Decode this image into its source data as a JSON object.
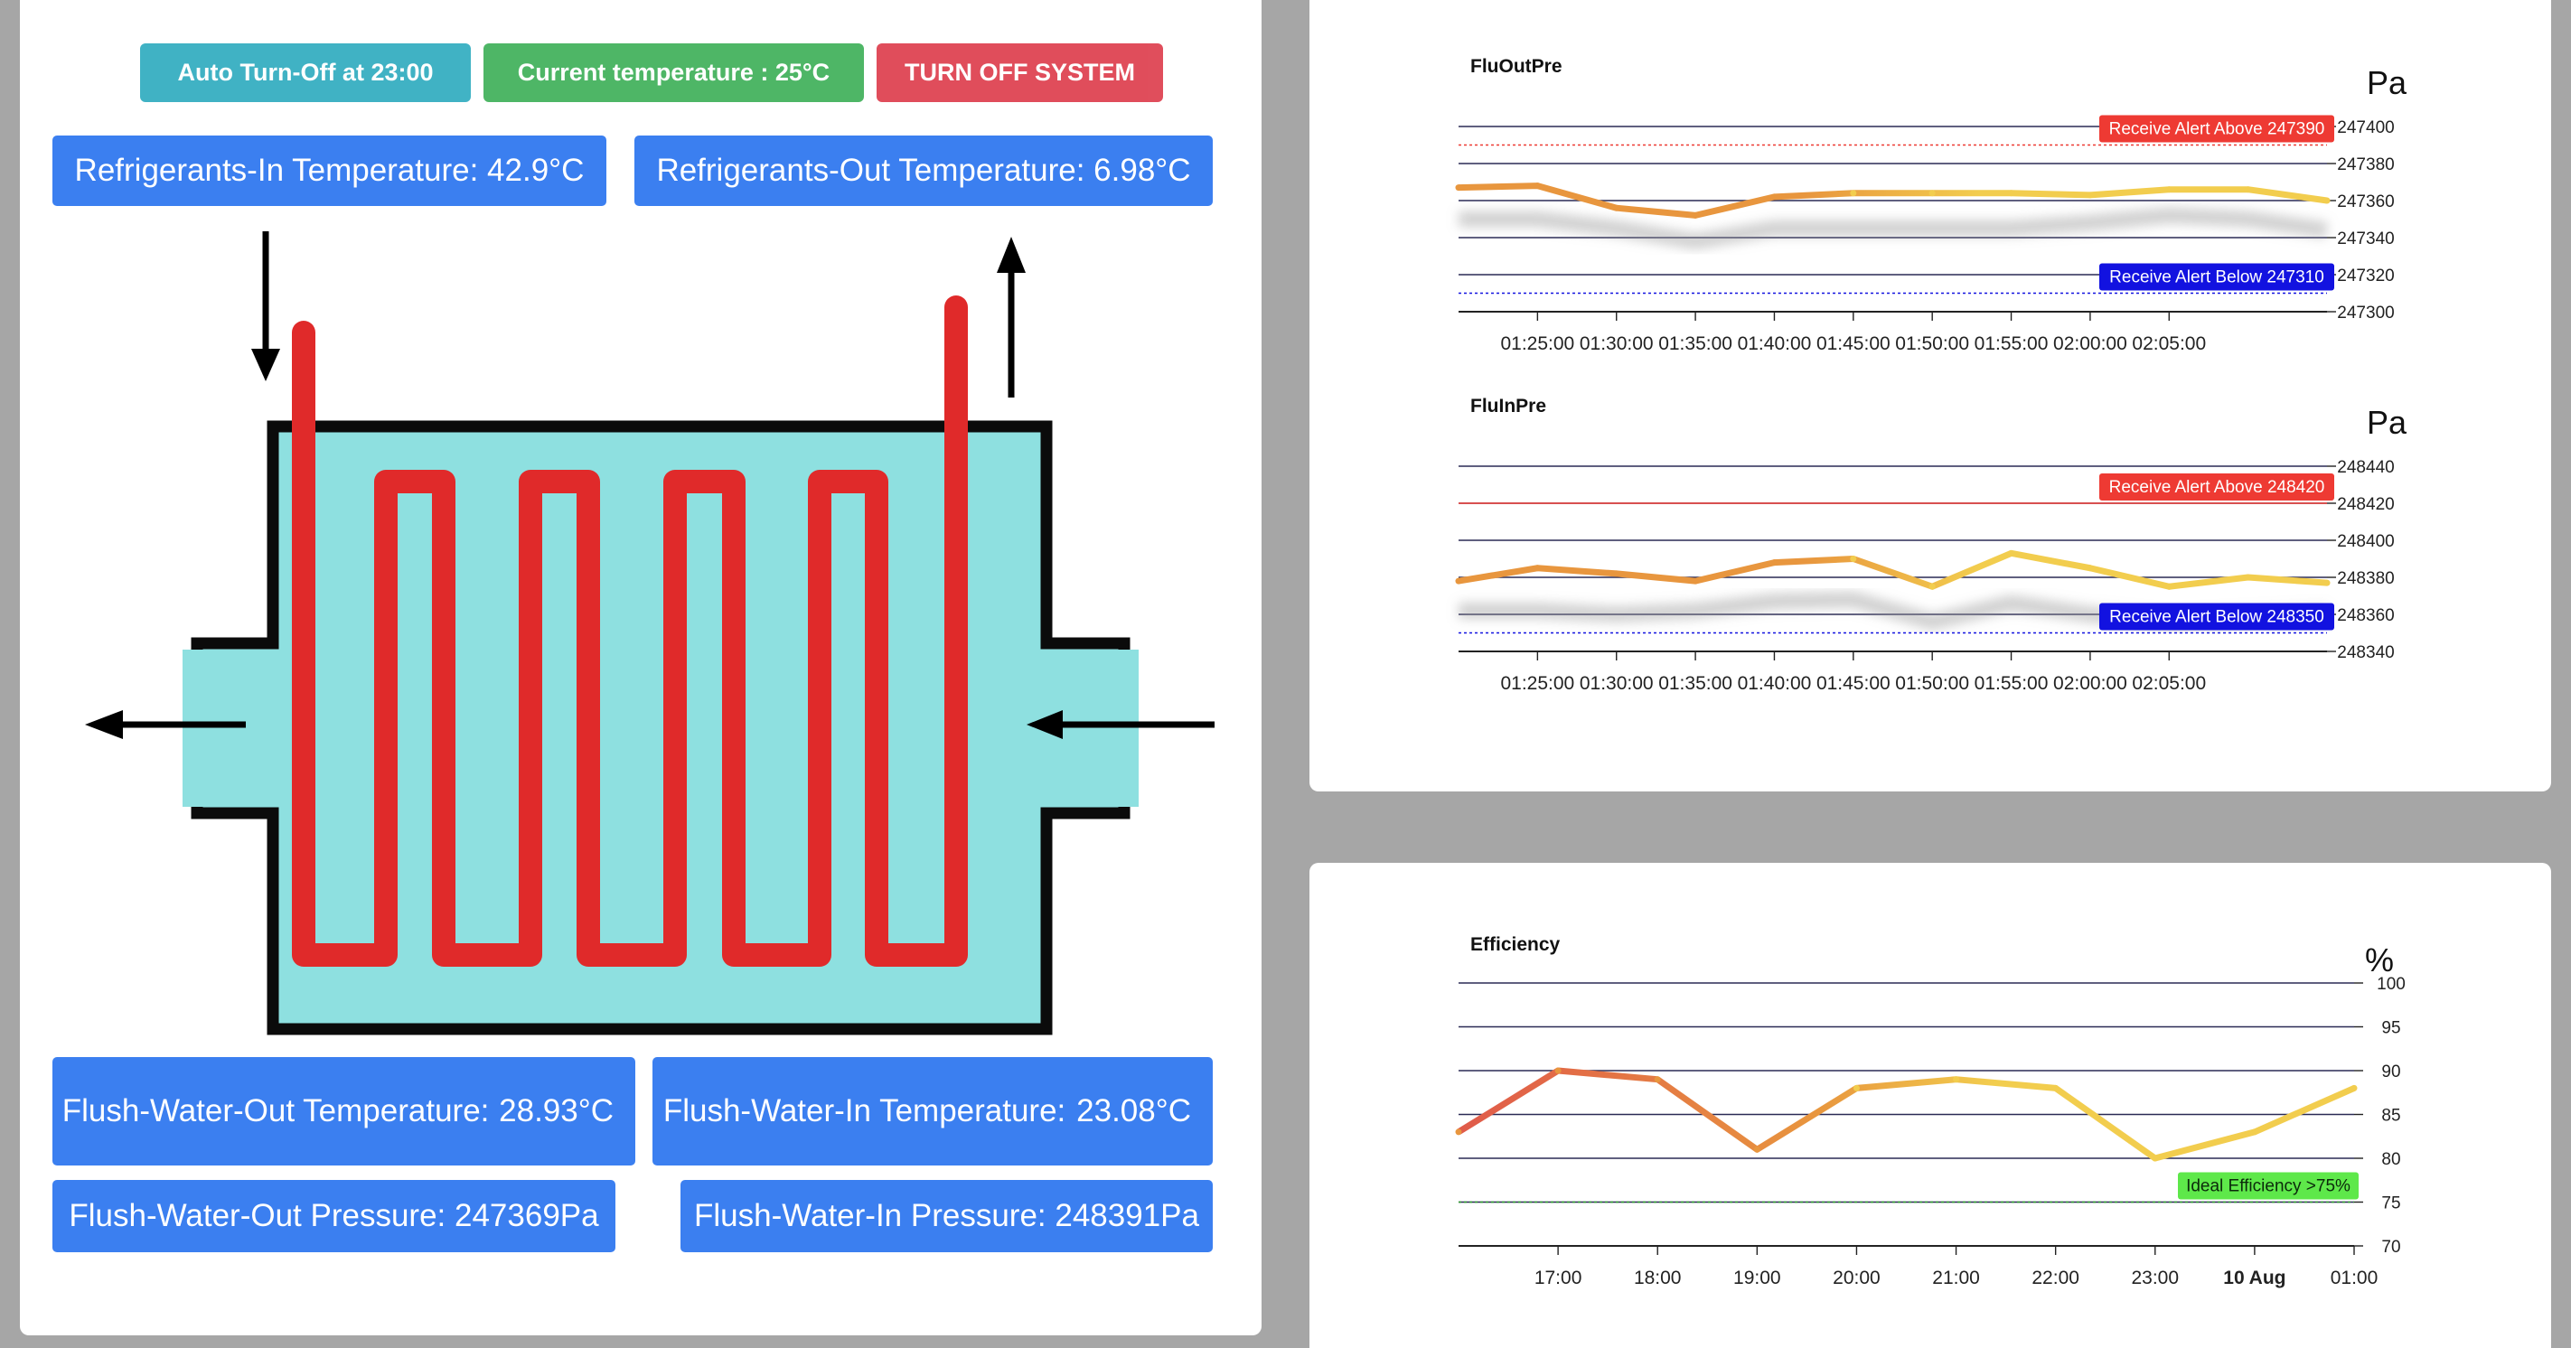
{
  "header_buttons": {
    "auto_off": "Auto Turn-Off at 23:00",
    "current_temp": "Current temperature : 25°C",
    "turn_off": "TURN OFF SYSTEM"
  },
  "readouts": {
    "ref_in": "Refrigerants-In Temperature: 42.9°C",
    "ref_out": "Refrigerants-Out Temperature: 6.98°C",
    "fw_out_temp_label": "Flush-Water-Out Temperature:",
    "fw_out_temp_value": "28.93°C",
    "fw_in_temp_label": "Flush-Water-In Temperature:",
    "fw_in_temp_value": "23.08°C",
    "fw_out_pressure": "Flush-Water-Out Pressure: 247369Pa",
    "fw_in_pressure": "Flush-Water-In Pressure: 248391Pa"
  },
  "colors": {
    "tank_fill": "#8ee0e0",
    "coil": "#e02a2a",
    "alert_above": "#ee3a33",
    "alert_below": "#1212e0",
    "ideal": "#5ee84a",
    "line_orange": "#e8963e",
    "line_yellow": "#f2cd4e"
  },
  "chart_data": [
    {
      "type": "line",
      "title": "FluOutPre",
      "unit": "Pa",
      "categories": [
        "01:25:00",
        "01:30:00",
        "01:35:00",
        "01:40:00",
        "01:45:00",
        "01:50:00",
        "01:55:00",
        "02:00:00",
        "02:05:00"
      ],
      "x": [
        0,
        5,
        10,
        15,
        20,
        25,
        30,
        35,
        40,
        45,
        50,
        55
      ],
      "values": [
        247367,
        247368,
        247356,
        247352,
        247362,
        247364,
        247364,
        247364,
        247363,
        247366,
        247366,
        247360
      ],
      "shadow_values": [
        247350,
        247350,
        247345,
        247338,
        247345,
        247345,
        247345,
        247345,
        247348,
        247352,
        247350,
        247344
      ],
      "ylim": [
        247300,
        247400
      ],
      "yticks": [
        247300,
        247320,
        247340,
        247360,
        247380,
        247400
      ],
      "alerts": [
        {
          "label": "Receive Alert Above 247390",
          "value": 247390,
          "kind": "above"
        },
        {
          "label": "Receive Alert Below 247310",
          "value": 247310,
          "kind": "below"
        }
      ]
    },
    {
      "type": "line",
      "title": "FluInPre",
      "unit": "Pa",
      "categories": [
        "01:25:00",
        "01:30:00",
        "01:35:00",
        "01:40:00",
        "01:45:00",
        "01:50:00",
        "01:55:00",
        "02:00:00",
        "02:05:00"
      ],
      "x": [
        0,
        5,
        10,
        15,
        20,
        25,
        30,
        35,
        40,
        45,
        50,
        55
      ],
      "values": [
        248378,
        248385,
        248382,
        248378,
        248388,
        248390,
        248375,
        248393,
        248385,
        248375,
        248380,
        248377
      ],
      "shadow_values": [
        248362,
        248362,
        248360,
        248362,
        248367,
        248368,
        248356,
        248366,
        248360,
        248356,
        248358,
        248360
      ],
      "ylim": [
        248340,
        248440
      ],
      "yticks": [
        248340,
        248360,
        248380,
        248400,
        248420,
        248440
      ],
      "alerts": [
        {
          "label": "Receive Alert Above 248420",
          "value": 248420,
          "kind": "above"
        },
        {
          "label": "Receive Alert Below 248350",
          "value": 248350,
          "kind": "below"
        }
      ]
    },
    {
      "type": "line",
      "title": "Efficiency",
      "unit": "%",
      "categories": [
        "17:00",
        "18:00",
        "19:00",
        "20:00",
        "21:00",
        "22:00",
        "23:00",
        "10 Aug",
        "01:00"
      ],
      "x": [
        16,
        17,
        18,
        19,
        20,
        21,
        22,
        23,
        24,
        25
      ],
      "values": [
        83,
        90,
        89,
        81,
        88,
        89,
        88,
        80,
        83,
        88
      ],
      "ylim": [
        70,
        100
      ],
      "yticks": [
        70,
        75,
        80,
        85,
        90,
        95,
        100
      ],
      "alerts": [
        {
          "label": "Ideal Efficiency >75%",
          "value": 75,
          "kind": "ideal"
        }
      ]
    }
  ]
}
